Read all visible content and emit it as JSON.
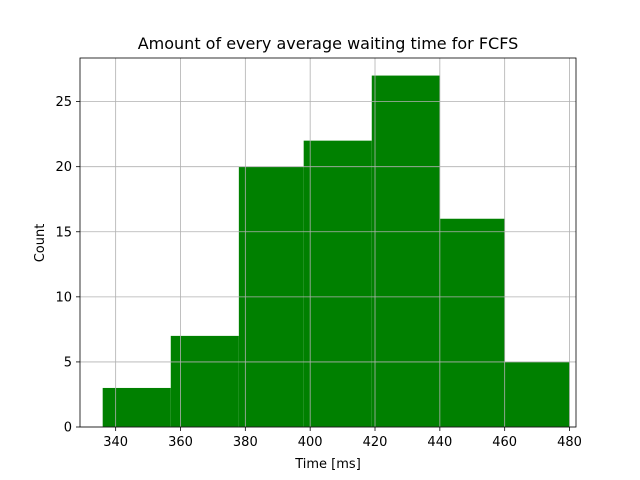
{
  "chart_data": {
    "type": "bar",
    "title": "Amount of every average waiting time for FCFS",
    "xlabel": "Time [ms]",
    "ylabel": "Count",
    "bins": [
      {
        "start": 336,
        "end": 357,
        "count": 3
      },
      {
        "start": 357,
        "end": 378,
        "count": 7
      },
      {
        "start": 378,
        "end": 398,
        "count": 20
      },
      {
        "start": 398,
        "end": 419,
        "count": 22
      },
      {
        "start": 419,
        "end": 440,
        "count": 27
      },
      {
        "start": 440,
        "end": 460,
        "count": 16
      },
      {
        "start": 460,
        "end": 480,
        "count": 5
      }
    ],
    "xlim": [
      329,
      482
    ],
    "ylim": [
      0,
      28.35
    ],
    "xticks": [
      340,
      360,
      380,
      400,
      420,
      440,
      460,
      480
    ],
    "yticks": [
      0,
      5,
      10,
      15,
      20,
      25
    ],
    "xtick_labels": [
      "340",
      "360",
      "380",
      "400",
      "420",
      "440",
      "460",
      "480"
    ],
    "ytick_labels": [
      "0",
      "5",
      "10",
      "15",
      "20",
      "25"
    ],
    "grid": true,
    "bar_color": "#008000",
    "grid_color": "#b0b0b0"
  }
}
